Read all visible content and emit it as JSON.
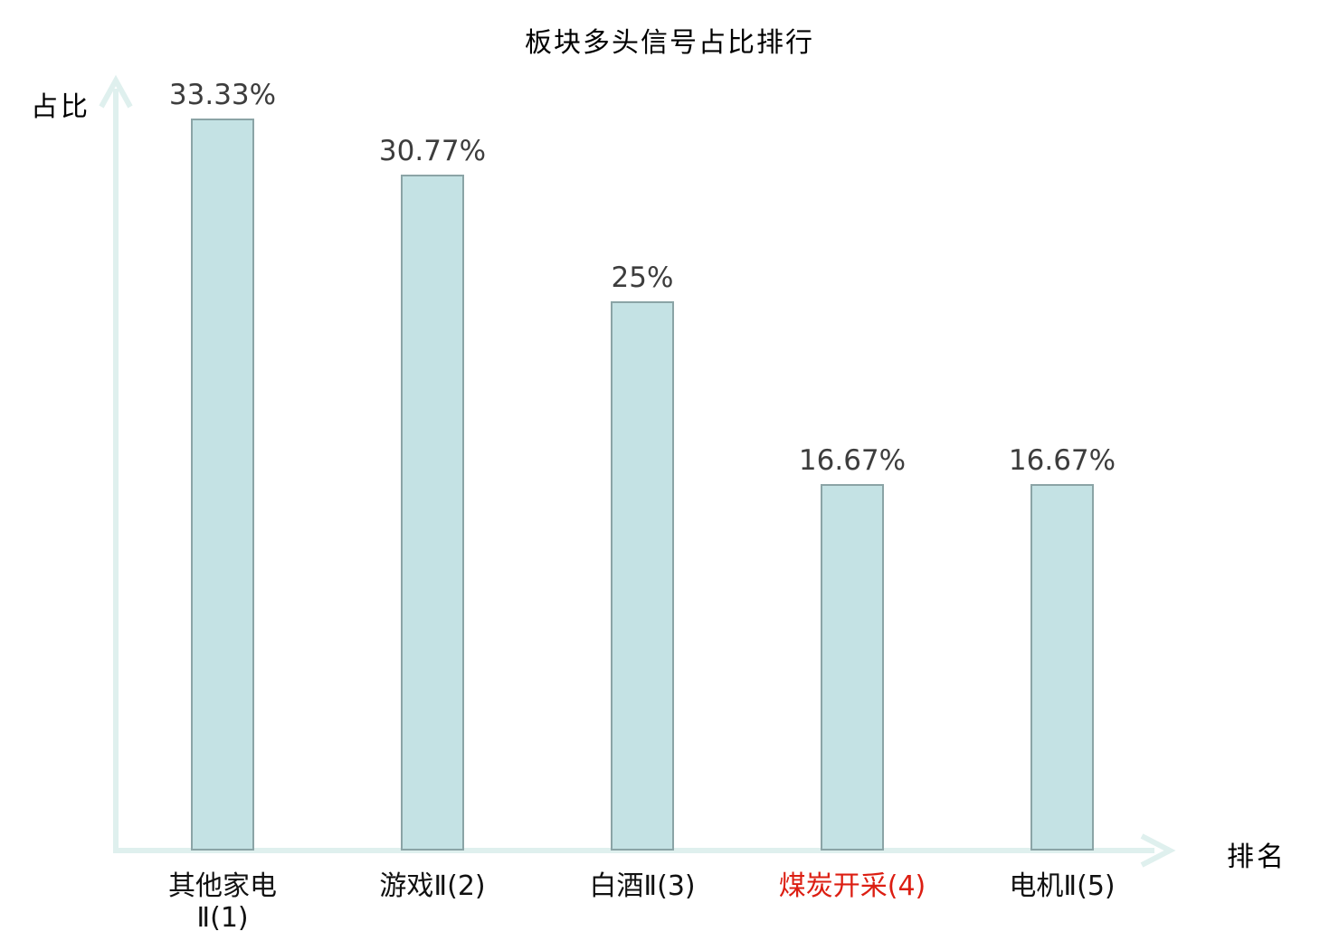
{
  "chart_data": {
    "type": "bar",
    "title": "板块多头信号占比排行",
    "xlabel": "排名",
    "ylabel": "占比",
    "ylim": [
      0,
      35
    ],
    "grid": false,
    "legend": null,
    "categories": [
      "其他家电Ⅱ(1)",
      "游戏Ⅱ(2)",
      "白酒Ⅱ(3)",
      "煤炭开采(4)",
      "电机Ⅱ(5)"
    ],
    "category_lines": [
      [
        "其他家电",
        "Ⅱ(1)"
      ],
      [
        "游戏Ⅱ(2)"
      ],
      [
        "白酒Ⅱ(3)"
      ],
      [
        "煤炭开采(4)"
      ],
      [
        "电机Ⅱ(5)"
      ]
    ],
    "values": [
      33.33,
      30.77,
      25,
      16.67,
      16.67
    ],
    "value_labels": [
      "33.33%",
      "30.77%",
      "25%",
      "16.67%",
      "16.67%"
    ],
    "highlighted_index": 3
  },
  "colors": {
    "bar_fill": "#c4e2e4",
    "bar_border": "#8ba4a6",
    "axis": "#dff0ee",
    "value_text": "#3d3d3d",
    "tick_text": "#111111",
    "title_text": "#000000",
    "highlight": "#dc1e12"
  }
}
